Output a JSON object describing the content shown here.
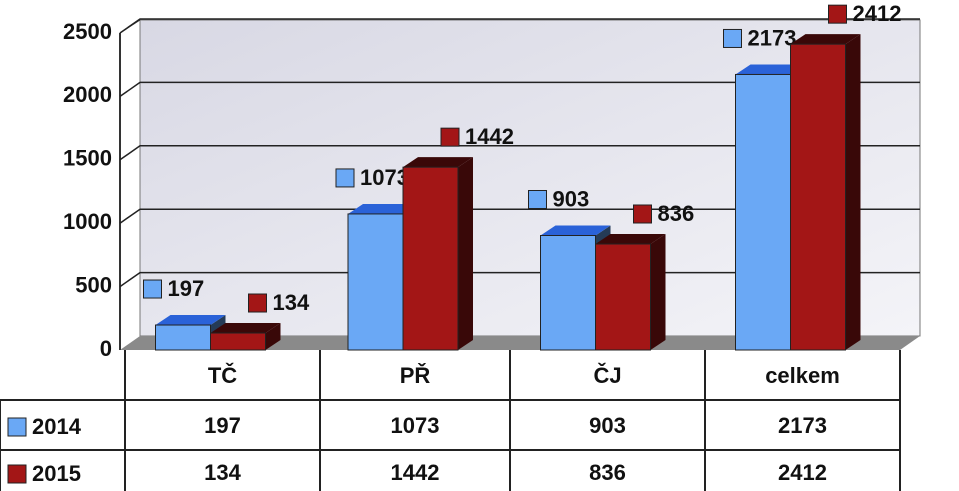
{
  "chart_data": {
    "type": "bar3d",
    "categories": [
      "TČ",
      "PŘ",
      "ČJ",
      "celkem"
    ],
    "series": [
      {
        "name": "2014",
        "color": "#6aa8f5",
        "values": [
          197,
          1073,
          903,
          2173
        ]
      },
      {
        "name": "2015",
        "color": "#a31616",
        "values": [
          134,
          1442,
          836,
          2412
        ]
      }
    ],
    "ylim": [
      0,
      2500
    ],
    "yticks": [
      0,
      500,
      1000,
      1500,
      2000,
      2500
    ],
    "grid": true,
    "data_table": true
  }
}
